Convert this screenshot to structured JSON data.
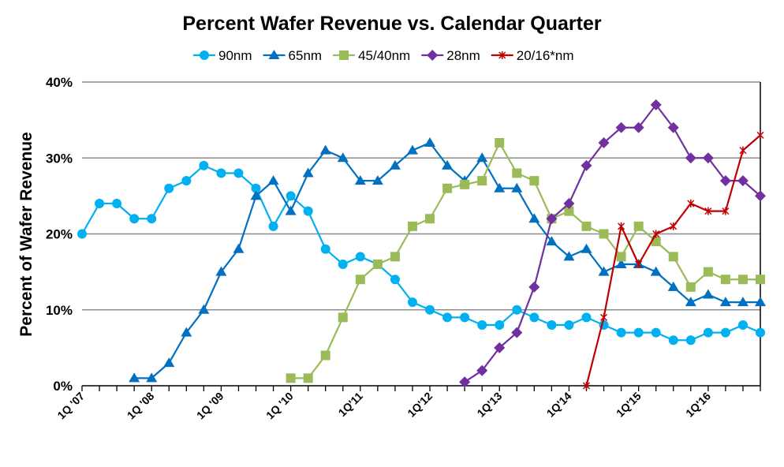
{
  "chart_data": {
    "type": "line",
    "title": "Percent Wafer Revenue vs. Calendar Quarter",
    "xlabel": "",
    "ylabel": "Percent of Wafer Revenue",
    "ylim": [
      0,
      40
    ],
    "y_ticks": [
      "0%",
      "10%",
      "20%",
      "30%",
      "40%"
    ],
    "grid": "horizontal",
    "legend": "top",
    "x_count": 40,
    "x_tick_labels": [
      "1Q '07",
      "1Q '08",
      "1Q '09",
      "1Q '10",
      "1Q'11",
      "1Q'12",
      "1Q'13",
      "1Q'14",
      "1Q'15",
      "1Q'16"
    ],
    "series": [
      {
        "name": "90nm",
        "color": "#00B0F0",
        "marker": "circle",
        "start": 0,
        "values": [
          20,
          24,
          24,
          22,
          22,
          26,
          27,
          29,
          28,
          28,
          26,
          21,
          25,
          23,
          18,
          16,
          17,
          16,
          14,
          11,
          10,
          9,
          9,
          8,
          8,
          10,
          9,
          8,
          8,
          9,
          8,
          7,
          7,
          7,
          6,
          6,
          7,
          7,
          8,
          7
        ]
      },
      {
        "name": "65nm",
        "color": "#0070C0",
        "marker": "triangle",
        "start": 3,
        "values": [
          1,
          1,
          3,
          7,
          10,
          15,
          18,
          25,
          27,
          23,
          28,
          31,
          30,
          27,
          27,
          29,
          31,
          32,
          29,
          27,
          30,
          26,
          26,
          22,
          19,
          17,
          18,
          15,
          16,
          16,
          15,
          13,
          11,
          12,
          11,
          11,
          11
        ]
      },
      {
        "name": "45/40nm",
        "color": "#9BBB59",
        "marker": "square",
        "start": 12,
        "values": [
          1,
          1,
          4,
          9,
          14,
          16,
          17,
          21,
          22,
          26,
          26.5,
          27,
          32,
          28,
          27,
          22,
          23,
          21,
          20,
          17,
          21,
          19,
          17,
          13,
          15,
          14,
          14,
          14
        ]
      },
      {
        "name": "28nm",
        "color": "#7030A0",
        "marker": "diamond",
        "start": 22,
        "values": [
          0.5,
          2,
          5,
          7,
          13,
          22,
          24,
          29,
          32,
          34,
          34,
          37,
          34,
          30,
          30,
          27,
          27,
          25
        ]
      },
      {
        "name": "20/16*nm",
        "color": "#C00000",
        "marker": "star",
        "start": 29,
        "values": [
          0,
          9,
          21,
          16,
          20,
          21,
          24,
          23,
          23,
          31,
          33
        ]
      }
    ]
  }
}
